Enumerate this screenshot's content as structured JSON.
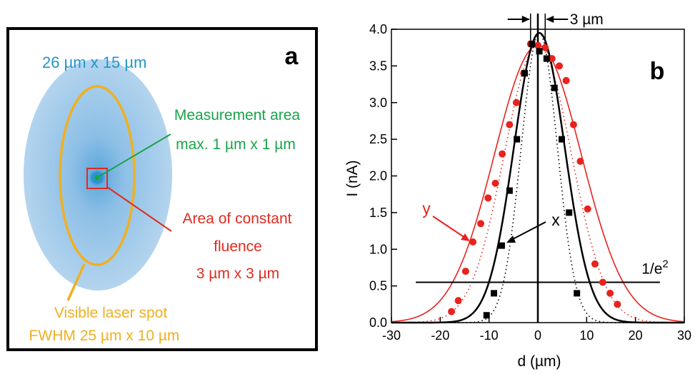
{
  "panel_a": {
    "label": "a",
    "spot_size_label": "26 µm x 15 µm",
    "measurement_area_label": [
      "Measurement area",
      "max. 1 µm x 1 µm"
    ],
    "constant_fluence_label": [
      "Area of constant",
      "fluence",
      "3 µm x 3 µm"
    ],
    "visible_spot_label": [
      "Visible laser spot",
      "FWHM 25 µm x 10 µm"
    ],
    "colors": {
      "spot_size": "#2196c8",
      "measurement": "#1aa34a",
      "constant_fluence": "#e02b20",
      "visible_spot": "#f0b020",
      "spot_fill": "#a9cdea",
      "spot_center": "#2a8fd0"
    }
  },
  "chart_data": {
    "type": "scatter",
    "panel_label": "b",
    "xlabel": "d (µm)",
    "ylabel": "I (nA)",
    "xlim": [
      -30,
      30
    ],
    "ylim": [
      0,
      4
    ],
    "x_ticks": [
      -30,
      -20,
      -10,
      0,
      10,
      20,
      30
    ],
    "y_ticks": [
      0.0,
      0.5,
      1.0,
      1.5,
      2.0,
      2.5,
      3.0,
      3.5,
      4.0
    ],
    "x_tick_labels": [
      "-30",
      "-20",
      "-10",
      "0",
      "10",
      "20",
      "30"
    ],
    "y_tick_labels": [
      "0.0",
      "0.5",
      "1.0",
      "1.5",
      "2.0",
      "2.5",
      "3.0",
      "3.5",
      "4.0"
    ],
    "grid": false,
    "series": [
      {
        "label": "y",
        "marker": "circle",
        "color": "#e8231d",
        "x": [
          -17.7,
          -16.3,
          -14.8,
          -13.3,
          -11.7,
          -10.2,
          -8.7,
          -7.3,
          -5.8,
          -4.4,
          -2.9,
          -1.5,
          0.0,
          1.5,
          2.9,
          4.4,
          5.8,
          7.3,
          8.7,
          10.2,
          11.7,
          13.3,
          14.8,
          16.3
        ],
        "y": [
          0.15,
          0.3,
          0.7,
          1.1,
          1.35,
          1.7,
          1.9,
          2.3,
          2.7,
          3.0,
          3.4,
          3.8,
          3.78,
          3.75,
          3.6,
          3.5,
          3.3,
          2.7,
          2.2,
          1.55,
          0.8,
          0.55,
          0.4,
          0.25
        ]
      },
      {
        "label": "x",
        "marker": "square",
        "color": "#000000",
        "x": [
          -10.5,
          -9.0,
          -7.4,
          -5.8,
          -4.3,
          -2.7,
          -1.2,
          0.3,
          1.8,
          3.4,
          4.9,
          6.4,
          8.0
        ],
        "y": [
          0.1,
          0.4,
          1.05,
          1.8,
          2.5,
          3.4,
          3.8,
          3.7,
          3.6,
          3.2,
          2.5,
          1.5,
          0.4
        ]
      }
    ],
    "fits": [
      {
        "series": "y",
        "style": "solid",
        "color": "#e8231d",
        "center": 0.0,
        "amplitude": 3.78,
        "sigma": 8.9
      },
      {
        "series": "y",
        "style": "dotted",
        "color": "#e8231d",
        "center": 0.0,
        "amplitude": 3.78,
        "sigma": 6.9
      },
      {
        "series": "x",
        "style": "solid",
        "color": "#000000",
        "center": 0.3,
        "amplitude": 3.95,
        "sigma": 5.2
      },
      {
        "series": "x",
        "style": "dotted",
        "color": "#000000",
        "center": 0.3,
        "amplitude": 3.95,
        "sigma": 3.7
      }
    ],
    "threshold_line": {
      "y": 0.55,
      "x_range": [
        -25,
        25
      ],
      "label": "1/e",
      "label_sup": "2"
    },
    "vertical_lines": [
      -1.5,
      0.0,
      1.5
    ],
    "width_annotation": {
      "label": "3 µm",
      "left": -1.5,
      "right": 1.5,
      "y": 3.95
    }
  }
}
